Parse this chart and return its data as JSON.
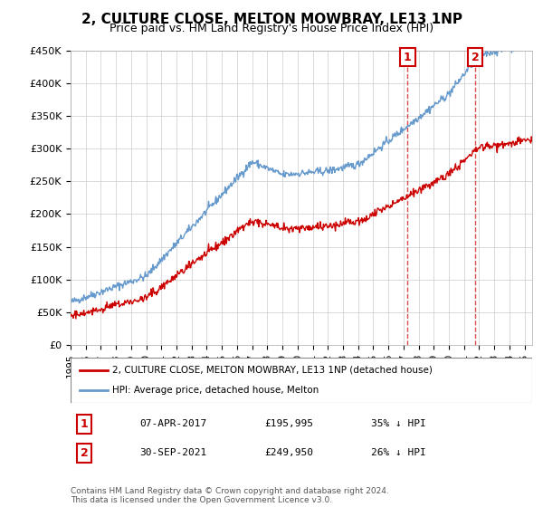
{
  "title": "2, CULTURE CLOSE, MELTON MOWBRAY, LE13 1NP",
  "subtitle": "Price paid vs. HM Land Registry's House Price Index (HPI)",
  "ylabel_ticks": [
    "£0",
    "£50K",
    "£100K",
    "£150K",
    "£200K",
    "£250K",
    "£300K",
    "£350K",
    "£400K",
    "£450K"
  ],
  "ylim": [
    0,
    450000
  ],
  "xlim_start": 1995.0,
  "xlim_end": 2025.5,
  "red_line_color": "#cc0000",
  "blue_line_color": "#6699cc",
  "marker1_x": 2017.27,
  "marker1_y": 195995,
  "marker2_x": 2021.75,
  "marker2_y": 249950,
  "marker1_label": "1",
  "marker2_label": "2",
  "annotation1_date": "07-APR-2017",
  "annotation1_price": "£195,995",
  "annotation1_hpi": "35% ↓ HPI",
  "annotation2_date": "30-SEP-2021",
  "annotation2_price": "£249,950",
  "annotation2_hpi": "26% ↓ HPI",
  "legend_red": "2, CULTURE CLOSE, MELTON MOWBRAY, LE13 1NP (detached house)",
  "legend_blue": "HPI: Average price, detached house, Melton",
  "footer": "Contains HM Land Registry data © Crown copyright and database right 2024.\nThis data is licensed under the Open Government Licence v3.0.",
  "background_color": "#ffffff",
  "grid_color": "#cccccc"
}
